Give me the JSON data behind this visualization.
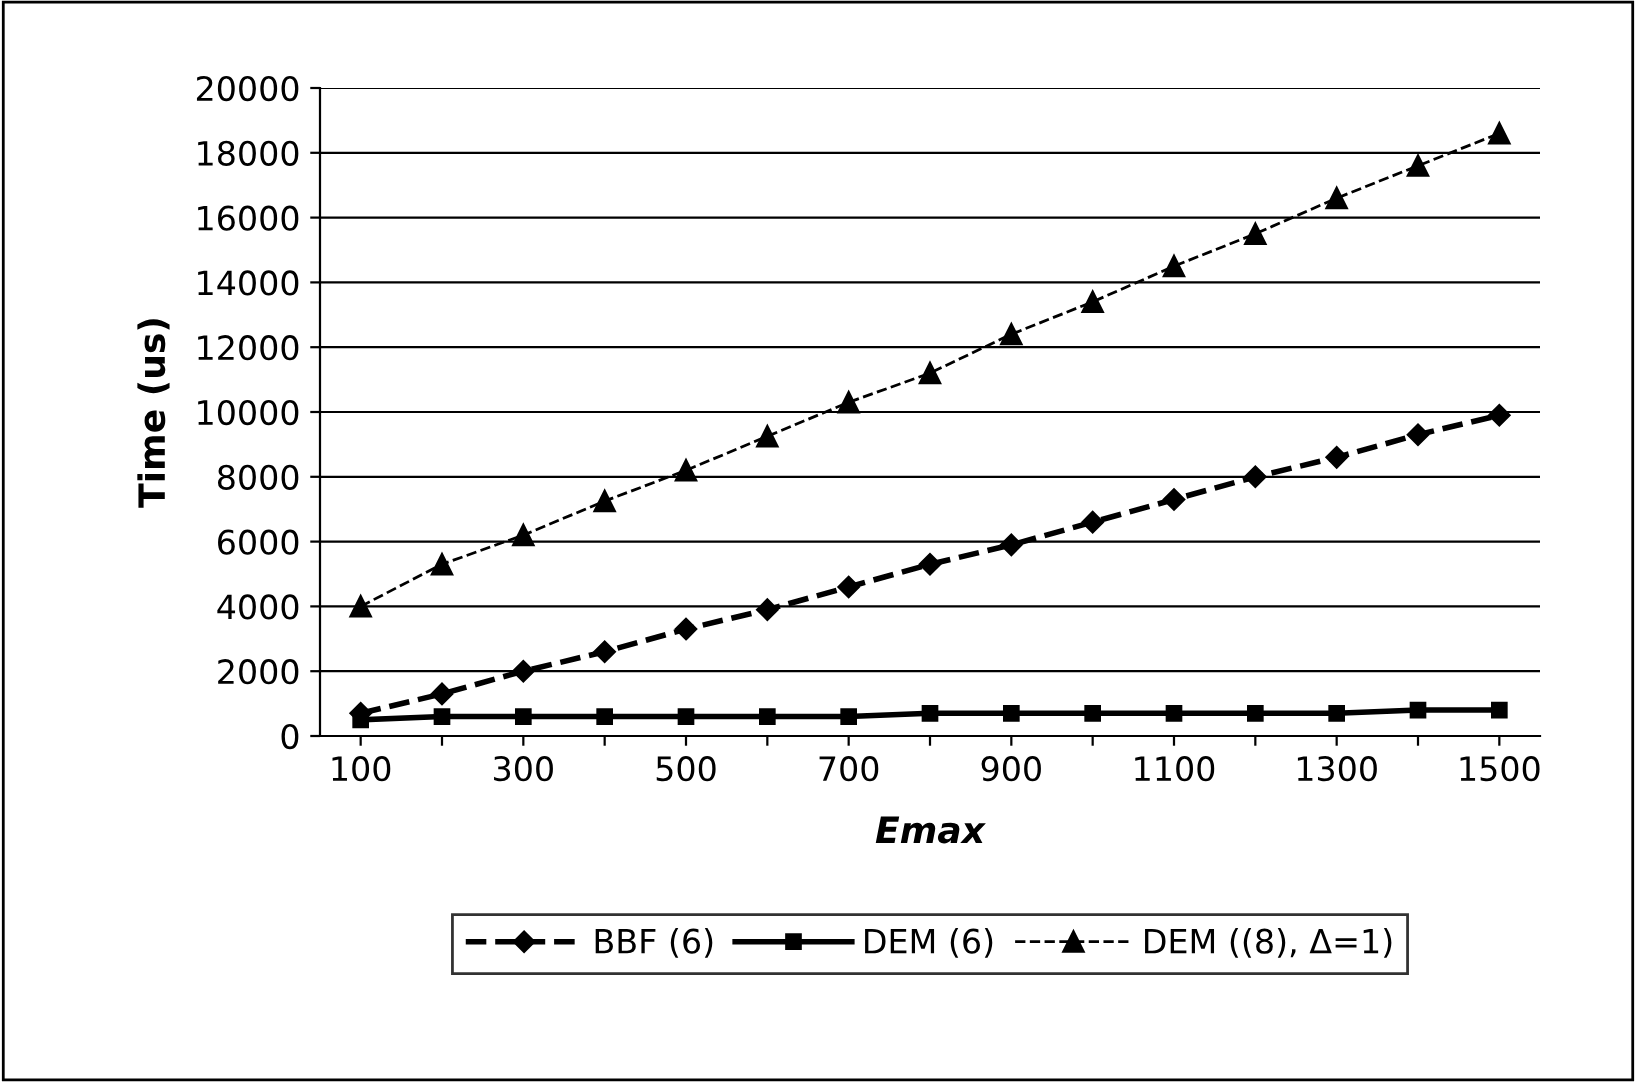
{
  "chart_data": {
    "type": "line",
    "xlabel": "Emax",
    "ylabel": "Time (us)",
    "categories": [
      "100",
      null,
      "300",
      null,
      "500",
      null,
      "700",
      null,
      "900",
      null,
      "1100",
      null,
      "1300",
      null,
      "1500"
    ],
    "series": [
      {
        "name": "BBF (6)",
        "color": "#000000",
        "marker": "diamond",
        "line_style": "dashed",
        "values": [
          700,
          1300,
          2000,
          2600,
          3300,
          3900,
          4600,
          5300,
          5900,
          6600,
          7300,
          8000,
          8600,
          9300,
          9900
        ]
      },
      {
        "name": "DEM (6)",
        "color": "#000000",
        "marker": "square",
        "line_style": "solid",
        "values": [
          500,
          600,
          600,
          600,
          600,
          600,
          600,
          700,
          700,
          700,
          700,
          700,
          700,
          800,
          800
        ]
      },
      {
        "name": "DEM ((8), Δ=1)",
        "color": "#000000",
        "marker": "triangle",
        "line_style": "dashed",
        "values": [
          4000,
          5300,
          6200,
          7250,
          8200,
          9250,
          10300,
          11200,
          12400,
          13400,
          14500,
          15500,
          16600,
          17600,
          18600
        ]
      }
    ],
    "ylim": [
      0,
      20000
    ],
    "yticks": [
      0,
      2000,
      4000,
      6000,
      8000,
      10000,
      12000,
      14000,
      16000,
      18000,
      20000
    ],
    "grid": "y",
    "legend": "bottom"
  }
}
